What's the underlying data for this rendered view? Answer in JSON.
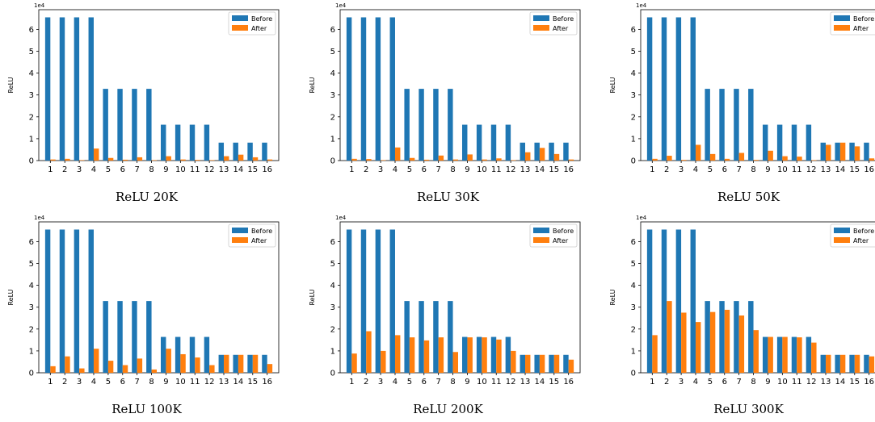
{
  "colors": {
    "before": "#1f77b4",
    "after": "#ff7f0e"
  },
  "chart_data": [
    {
      "type": "bar",
      "caption": "ReLU 20K",
      "ylabel": "ReLU",
      "scale_label": "1e4",
      "ylim": [
        0,
        6.9
      ],
      "yticks": [
        0,
        1,
        2,
        3,
        4,
        5,
        6
      ],
      "legend": "top-right",
      "categories": [
        "1",
        "2",
        "3",
        "4",
        "5",
        "6",
        "7",
        "8",
        "9",
        "10",
        "11",
        "12",
        "13",
        "14",
        "15",
        "16"
      ],
      "series": [
        {
          "name": "Before",
          "values": [
            6.55,
            6.55,
            6.55,
            6.55,
            3.28,
            3.28,
            3.28,
            3.28,
            1.64,
            1.64,
            1.64,
            1.64,
            0.82,
            0.82,
            0.82,
            0.82
          ]
        },
        {
          "name": "After",
          "values": [
            0.05,
            0.08,
            0.02,
            0.55,
            0.12,
            0.04,
            0.15,
            0.02,
            0.2,
            0.05,
            0.03,
            0.02,
            0.2,
            0.27,
            0.15,
            0.05
          ]
        }
      ]
    },
    {
      "type": "bar",
      "caption": "ReLU 30K",
      "ylabel": "ReLU",
      "scale_label": "1e4",
      "ylim": [
        0,
        6.9
      ],
      "yticks": [
        0,
        1,
        2,
        3,
        4,
        5,
        6
      ],
      "legend": "top-right",
      "categories": [
        "1",
        "2",
        "3",
        "4",
        "5",
        "6",
        "7",
        "8",
        "9",
        "10",
        "11",
        "12",
        "13",
        "14",
        "15",
        "16"
      ],
      "series": [
        {
          "name": "Before",
          "values": [
            6.55,
            6.55,
            6.55,
            6.55,
            3.28,
            3.28,
            3.28,
            3.28,
            1.64,
            1.64,
            1.64,
            1.64,
            0.82,
            0.82,
            0.82,
            0.82
          ]
        },
        {
          "name": "After",
          "values": [
            0.08,
            0.07,
            0.02,
            0.6,
            0.12,
            0.04,
            0.23,
            0.05,
            0.28,
            0.05,
            0.1,
            0.02,
            0.38,
            0.58,
            0.3,
            0.05
          ]
        }
      ]
    },
    {
      "type": "bar",
      "caption": "ReLU 50K",
      "ylabel": "ReLU",
      "scale_label": "1e4",
      "ylim": [
        0,
        6.9
      ],
      "yticks": [
        0,
        1,
        2,
        3,
        4,
        5,
        6
      ],
      "legend": "top-right",
      "categories": [
        "1",
        "2",
        "3",
        "4",
        "5",
        "6",
        "7",
        "8",
        "9",
        "10",
        "11",
        "12",
        "13",
        "14",
        "15",
        "16"
      ],
      "series": [
        {
          "name": "Before",
          "values": [
            6.55,
            6.55,
            6.55,
            6.55,
            3.28,
            3.28,
            3.28,
            3.28,
            1.64,
            1.64,
            1.64,
            1.64,
            0.82,
            0.82,
            0.82,
            0.82
          ]
        },
        {
          "name": "After",
          "values": [
            0.08,
            0.22,
            0.03,
            0.72,
            0.3,
            0.08,
            0.35,
            0.03,
            0.45,
            0.2,
            0.18,
            0.02,
            0.72,
            0.82,
            0.65,
            0.1
          ]
        }
      ]
    },
    {
      "type": "bar",
      "caption": "ReLU 100K",
      "ylabel": "ReLU",
      "scale_label": "1e4",
      "ylim": [
        0,
        6.9
      ],
      "yticks": [
        0,
        1,
        2,
        3,
        4,
        5,
        6
      ],
      "legend": "top-right",
      "categories": [
        "1",
        "2",
        "3",
        "4",
        "5",
        "6",
        "7",
        "8",
        "9",
        "10",
        "11",
        "12",
        "13",
        "14",
        "15",
        "16"
      ],
      "series": [
        {
          "name": "Before",
          "values": [
            6.55,
            6.55,
            6.55,
            6.55,
            3.28,
            3.28,
            3.28,
            3.28,
            1.64,
            1.64,
            1.64,
            1.64,
            0.82,
            0.82,
            0.82,
            0.82
          ]
        },
        {
          "name": "After",
          "values": [
            0.3,
            0.75,
            0.2,
            1.1,
            0.55,
            0.35,
            0.65,
            0.15,
            1.1,
            0.85,
            0.7,
            0.35,
            0.82,
            0.82,
            0.82,
            0.4
          ]
        }
      ]
    },
    {
      "type": "bar",
      "caption": "ReLU 200K",
      "ylabel": "ReLU",
      "scale_label": "1e4",
      "ylim": [
        0,
        6.9
      ],
      "yticks": [
        0,
        1,
        2,
        3,
        4,
        5,
        6
      ],
      "legend": "top-right",
      "categories": [
        "1",
        "2",
        "3",
        "4",
        "5",
        "6",
        "7",
        "8",
        "9",
        "10",
        "11",
        "12",
        "13",
        "14",
        "15",
        "16"
      ],
      "series": [
        {
          "name": "Before",
          "values": [
            6.55,
            6.55,
            6.55,
            6.55,
            3.28,
            3.28,
            3.28,
            3.28,
            1.64,
            1.64,
            1.64,
            1.64,
            0.82,
            0.82,
            0.82,
            0.82
          ]
        },
        {
          "name": "After",
          "values": [
            0.88,
            1.9,
            1.0,
            1.72,
            1.62,
            1.48,
            1.62,
            0.95,
            1.62,
            1.62,
            1.52,
            1.0,
            0.82,
            0.82,
            0.82,
            0.6
          ]
        }
      ]
    },
    {
      "type": "bar",
      "caption": "ReLU 300K",
      "ylabel": "ReLU",
      "scale_label": "1e4",
      "ylim": [
        0,
        6.9
      ],
      "yticks": [
        0,
        1,
        2,
        3,
        4,
        5,
        6
      ],
      "legend": "top-right",
      "categories": [
        "1",
        "2",
        "3",
        "4",
        "5",
        "6",
        "7",
        "8",
        "9",
        "10",
        "11",
        "12",
        "13",
        "14",
        "15",
        "16"
      ],
      "series": [
        {
          "name": "Before",
          "values": [
            6.55,
            6.55,
            6.55,
            6.55,
            3.28,
            3.28,
            3.28,
            3.28,
            1.64,
            1.64,
            1.64,
            1.64,
            0.82,
            0.82,
            0.82,
            0.82
          ]
        },
        {
          "name": "After",
          "values": [
            1.72,
            3.28,
            2.75,
            2.32,
            2.78,
            2.88,
            2.62,
            1.95,
            1.64,
            1.64,
            1.62,
            1.38,
            0.82,
            0.82,
            0.82,
            0.75
          ]
        }
      ]
    }
  ]
}
